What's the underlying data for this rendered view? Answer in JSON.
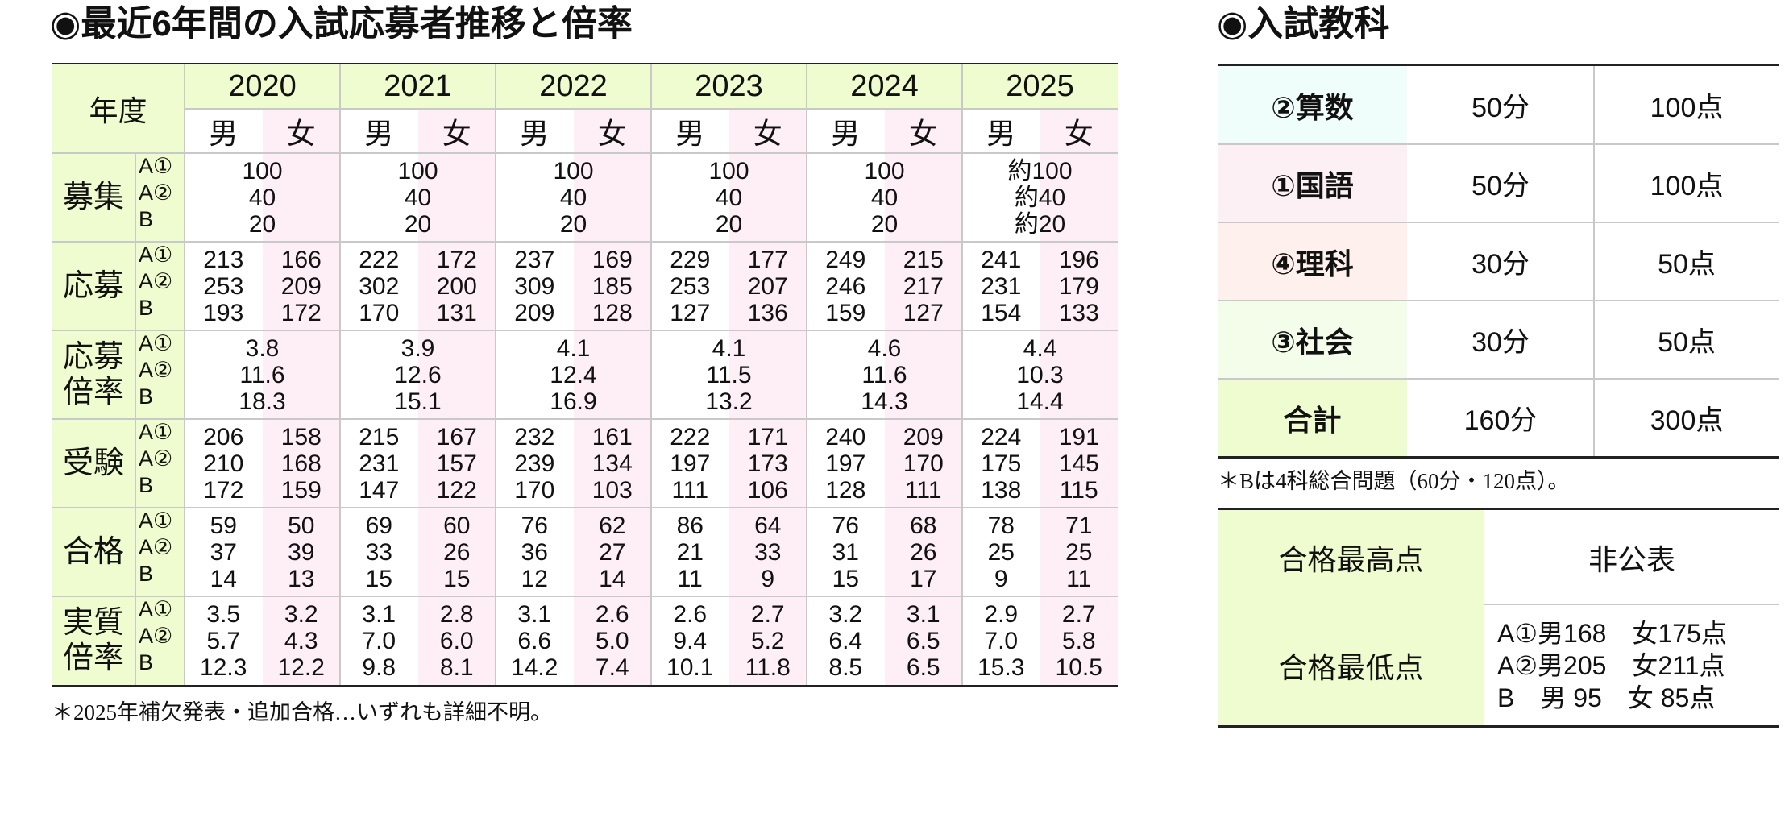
{
  "main_title": "◉最近6年間の入試応募者推移と倍率",
  "subjects_title": "◉入試教科",
  "main_table": {
    "corner_label": "年度",
    "years": [
      "2020",
      "2021",
      "2022",
      "2023",
      "2024",
      "2025"
    ],
    "sex_labels": [
      "男",
      "女"
    ],
    "sub_labels": [
      "A①",
      "A②",
      "B"
    ],
    "rows": [
      {
        "label": "募集",
        "merged": true,
        "values": [
          [
            "100",
            "40",
            "20"
          ],
          [
            "100",
            "40",
            "20"
          ],
          [
            "100",
            "40",
            "20"
          ],
          [
            "100",
            "40",
            "20"
          ],
          [
            "100",
            "40",
            "20"
          ],
          [
            "約100",
            "約40",
            "約20"
          ]
        ]
      },
      {
        "label": "応募",
        "merged": false,
        "values": [
          {
            "male": [
              "213",
              "253",
              "193"
            ],
            "female": [
              "166",
              "209",
              "172"
            ]
          },
          {
            "male": [
              "222",
              "302",
              "170"
            ],
            "female": [
              "172",
              "200",
              "131"
            ]
          },
          {
            "male": [
              "237",
              "309",
              "209"
            ],
            "female": [
              "169",
              "185",
              "128"
            ]
          },
          {
            "male": [
              "229",
              "253",
              "127"
            ],
            "female": [
              "177",
              "207",
              "136"
            ]
          },
          {
            "male": [
              "249",
              "246",
              "159"
            ],
            "female": [
              "215",
              "217",
              "127"
            ]
          },
          {
            "male": [
              "241",
              "231",
              "154"
            ],
            "female": [
              "196",
              "179",
              "133"
            ]
          }
        ]
      },
      {
        "label": "応募\n倍率",
        "label_lines": [
          "応募",
          "倍率"
        ],
        "merged": true,
        "values": [
          [
            "3.8",
            "11.6",
            "18.3"
          ],
          [
            "3.9",
            "12.6",
            "15.1"
          ],
          [
            "4.1",
            "12.4",
            "16.9"
          ],
          [
            "4.1",
            "11.5",
            "13.2"
          ],
          [
            "4.6",
            "11.6",
            "14.3"
          ],
          [
            "4.4",
            "10.3",
            "14.4"
          ]
        ]
      },
      {
        "label": "受験",
        "merged": false,
        "values": [
          {
            "male": [
              "206",
              "210",
              "172"
            ],
            "female": [
              "158",
              "168",
              "159"
            ]
          },
          {
            "male": [
              "215",
              "231",
              "147"
            ],
            "female": [
              "167",
              "157",
              "122"
            ]
          },
          {
            "male": [
              "232",
              "239",
              "170"
            ],
            "female": [
              "161",
              "134",
              "103"
            ]
          },
          {
            "male": [
              "222",
              "197",
              "111"
            ],
            "female": [
              "171",
              "173",
              "106"
            ]
          },
          {
            "male": [
              "240",
              "197",
              "128"
            ],
            "female": [
              "209",
              "170",
              "111"
            ]
          },
          {
            "male": [
              "224",
              "175",
              "138"
            ],
            "female": [
              "191",
              "145",
              "115"
            ]
          }
        ]
      },
      {
        "label": "合格",
        "merged": false,
        "values": [
          {
            "male": [
              "59",
              "37",
              "14"
            ],
            "female": [
              "50",
              "39",
              "13"
            ]
          },
          {
            "male": [
              "69",
              "33",
              "15"
            ],
            "female": [
              "60",
              "26",
              "15"
            ]
          },
          {
            "male": [
              "76",
              "36",
              "12"
            ],
            "female": [
              "62",
              "27",
              "14"
            ]
          },
          {
            "male": [
              "86",
              "21",
              "11"
            ],
            "female": [
              "64",
              "33",
              "9"
            ]
          },
          {
            "male": [
              "76",
              "31",
              "15"
            ],
            "female": [
              "68",
              "26",
              "17"
            ]
          },
          {
            "male": [
              "78",
              "25",
              "9"
            ],
            "female": [
              "71",
              "25",
              "11"
            ]
          }
        ]
      },
      {
        "label": "実質\n倍率",
        "label_lines": [
          "実質",
          "倍率"
        ],
        "merged": false,
        "values": [
          {
            "male": [
              "3.5",
              "5.7",
              "12.3"
            ],
            "female": [
              "3.2",
              "4.3",
              "12.2"
            ]
          },
          {
            "male": [
              "3.1",
              "7.0",
              "9.8"
            ],
            "female": [
              "2.8",
              "6.0",
              "8.1"
            ]
          },
          {
            "male": [
              "3.1",
              "6.6",
              "14.2"
            ],
            "female": [
              "2.6",
              "5.0",
              "7.4"
            ]
          },
          {
            "male": [
              "2.6",
              "9.4",
              "10.1"
            ],
            "female": [
              "2.7",
              "5.2",
              "11.8"
            ]
          },
          {
            "male": [
              "3.2",
              "6.4",
              "8.5"
            ],
            "female": [
              "3.1",
              "6.5",
              "6.5"
            ]
          },
          {
            "male": [
              "2.9",
              "7.0",
              "15.3"
            ],
            "female": [
              "2.7",
              "5.8",
              "10.5"
            ]
          }
        ]
      }
    ],
    "footnote": "＊2025年補欠発表・追加合格…いずれも詳細不明。"
  },
  "subjects_table": {
    "rows": [
      {
        "name": "②算数",
        "time": "50分",
        "points": "100点",
        "color": "#f0fefb"
      },
      {
        "name": "①国語",
        "time": "50分",
        "points": "100点",
        "color": "#fdf0f5"
      },
      {
        "name": "④理科",
        "time": "30分",
        "points": "50点",
        "color": "#fef0ec"
      },
      {
        "name": "③社会",
        "time": "30分",
        "points": "50点",
        "color": "#f3fde9"
      },
      {
        "name": "合計",
        "time": "160分",
        "points": "300点",
        "color": "#effccf"
      }
    ],
    "footnote": "＊Bは4科総合問題（60分・120点）。"
  },
  "scores_table": {
    "highest_label": "合格最高点",
    "highest_value": "非公表",
    "lowest_label": "合格最低点",
    "lowest_lines": [
      "A①男168　女175点",
      "A②男205　女211点",
      "B　男 95　女 85点"
    ]
  },
  "colors": {
    "label_green": "#effccf",
    "female_pink": "#fdeff5",
    "grid_gray": "#c9c9c9",
    "rule_black": "#222222"
  }
}
